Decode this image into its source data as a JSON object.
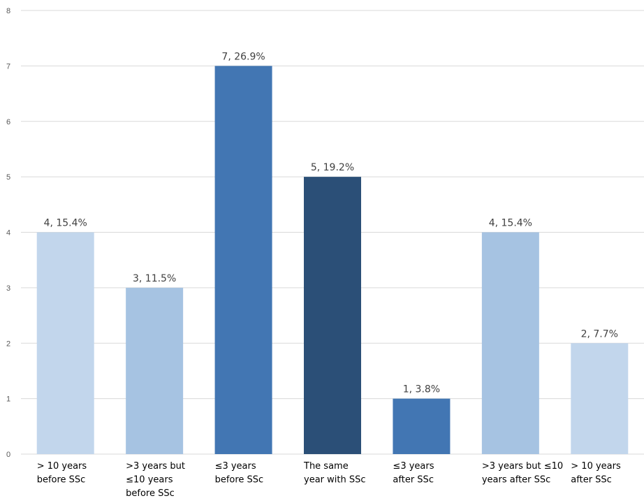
{
  "chart_data": {
    "type": "bar",
    "title": "",
    "xlabel": "",
    "ylabel": "",
    "ylim": [
      0,
      8
    ],
    "yticks": [
      0,
      1,
      2,
      3,
      4,
      5,
      6,
      7,
      8
    ],
    "grid": true,
    "categories": [
      "> 10 years before SSc",
      ">3 years but ≤10 years before SSc",
      "≤3 years before SSc",
      "The same year with SSc",
      "≤3 years after SSc",
      ">3 years but ≤10 years after  SSc",
      "> 10 years after  SSc"
    ],
    "category_lines": [
      [
        "> 10 years",
        "before SSc"
      ],
      [
        ">3 years but",
        "≤10 years",
        "before SSc"
      ],
      [
        "≤3 years",
        "before SSc"
      ],
      [
        "The same",
        "year with SSc"
      ],
      [
        "≤3 years",
        "after SSc"
      ],
      [
        ">3 years but ≤10",
        "years after  SSc"
      ],
      [
        "> 10 years",
        "after  SSc"
      ]
    ],
    "values": [
      4,
      3,
      7,
      5,
      1,
      4,
      2
    ],
    "percentages": [
      "15.4%",
      "11.5%",
      "26.9%",
      "19.2%",
      "3.8%",
      "15.4%",
      "7.7%"
    ],
    "data_labels": [
      "4, 15.4%",
      "3, 11.5%",
      "7, 26.9%",
      "5, 19.2%",
      "1, 3.8%",
      "4, 15.4%",
      "2, 7.7%"
    ],
    "colors": [
      "#c2d6ec",
      "#a6c3e2",
      "#4276b3",
      "#2b4f77",
      "#4276b3",
      "#a6c3e2",
      "#c2d6ec"
    ]
  }
}
